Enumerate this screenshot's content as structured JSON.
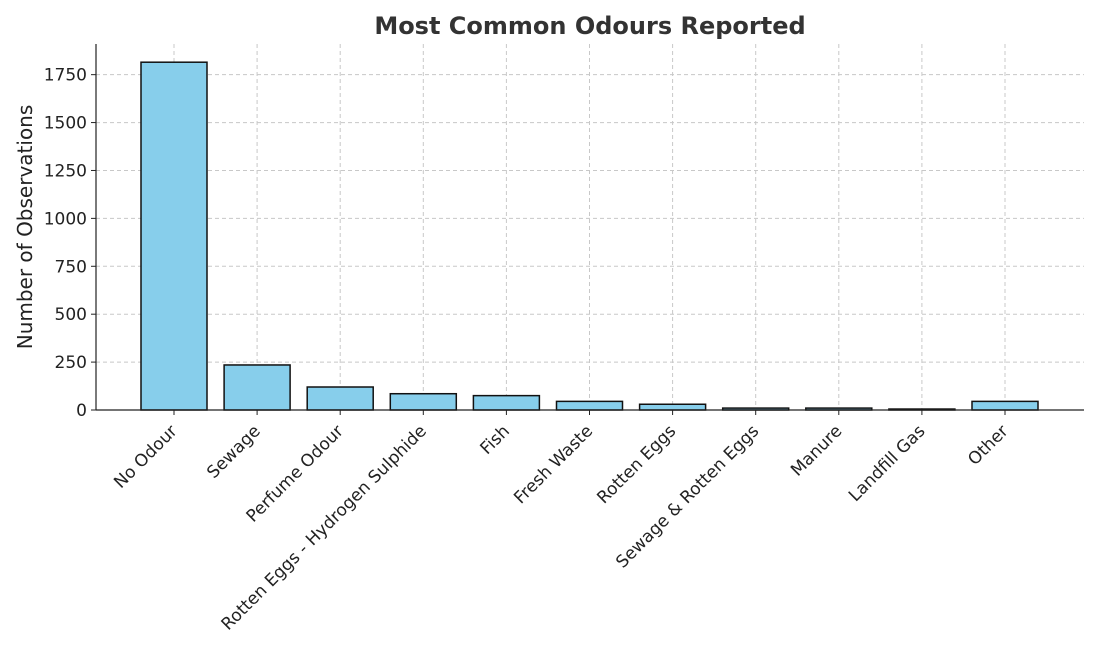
{
  "chart_data": {
    "type": "bar",
    "title": "Most Common Odours Reported",
    "xlabel": "",
    "ylabel": "Number of Observations",
    "categories": [
      "No Odour",
      "Sewage",
      "Perfume Odour",
      "Rotten Eggs - Hydrogen Sulphide",
      "Fish",
      "Fresh Waste",
      "Rotten Eggs",
      "Sewage & Rotten Eggs",
      "Manure",
      "Landfill Gas",
      "Other"
    ],
    "values": [
      1815,
      235,
      120,
      85,
      75,
      45,
      30,
      10,
      10,
      5,
      45
    ],
    "ylim": [
      0,
      1910
    ],
    "yticks": [
      0,
      250,
      500,
      750,
      1000,
      1250,
      1500,
      1750
    ],
    "grid": true,
    "bar_color": "#87CEEB",
    "bar_edge_color": "#111111"
  }
}
